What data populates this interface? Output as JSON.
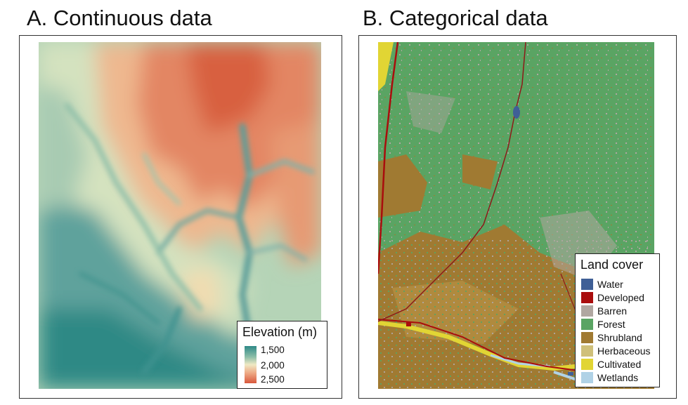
{
  "panel_a": {
    "title": "A. Continuous data",
    "legend": {
      "title": "Elevation (m)",
      "labels": [
        "1,500",
        "2,000",
        "2,500"
      ],
      "color_low": "#2f8a88",
      "color_mid": "#efe9c4",
      "color_high": "#d9583d"
    }
  },
  "panel_b": {
    "title": "B. Categorical data",
    "legend": {
      "title": "Land cover",
      "items": [
        {
          "label": "Water",
          "color": "#3f5f96"
        },
        {
          "label": "Developed",
          "color": "#a90d0d"
        },
        {
          "label": "Barren",
          "color": "#b0a7a1"
        },
        {
          "label": "Forest",
          "color": "#5aa463"
        },
        {
          "label": "Shrubland",
          "color": "#a07a32"
        },
        {
          "label": "Herbaceous",
          "color": "#cfc07a"
        },
        {
          "label": "Cultivated",
          "color": "#e1d534"
        },
        {
          "label": "Wetlands",
          "color": "#b0d2e6"
        }
      ]
    }
  }
}
